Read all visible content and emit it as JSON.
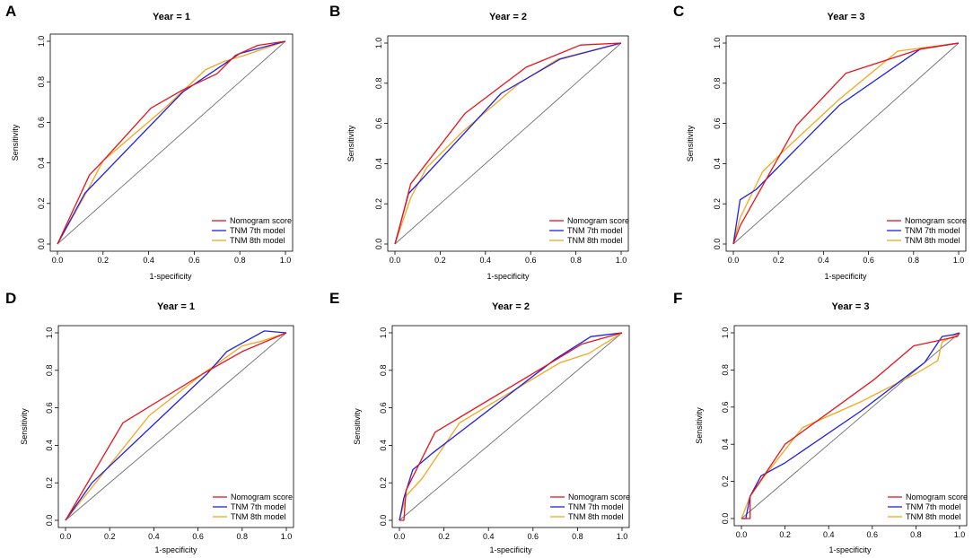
{
  "figure": {
    "colors": {
      "nomogram": "#e8141c",
      "tnm7": "#1f1fe6",
      "tnm8": "#f2a81d",
      "diagonal": "#707070",
      "axis": "#000000"
    }
  },
  "chart_data": [
    {
      "panel": "A",
      "type": "line",
      "title": "Year = 1",
      "xlabel": "1-specificity",
      "ylabel": "Sensitivity",
      "xlim": [
        0,
        1
      ],
      "ylim": [
        0,
        1
      ],
      "xticks": [
        "0.0",
        "0.2",
        "0.4",
        "0.6",
        "0.8",
        "1.0"
      ],
      "yticks": [
        "0.0",
        "0.2",
        "0.4",
        "0.6",
        "0.8",
        "1.0"
      ],
      "legend": [
        "Nomogram score",
        "TNM 7th model",
        "TNM 8th model"
      ],
      "series": [
        {
          "name": "Nomogram score",
          "x": [
            0,
            0.14,
            0.2,
            0.41,
            0.55,
            0.7,
            0.78,
            0.88,
            1
          ],
          "y": [
            0,
            0.34,
            0.41,
            0.67,
            0.76,
            0.84,
            0.93,
            0.98,
            1
          ]
        },
        {
          "name": "TNM 7th model",
          "x": [
            0,
            0.12,
            0.55,
            0.8,
            1
          ],
          "y": [
            0,
            0.25,
            0.75,
            0.94,
            1
          ]
        },
        {
          "name": "TNM 8th model",
          "x": [
            0,
            0.12,
            0.2,
            0.47,
            0.65,
            0.73,
            0.82,
            1
          ],
          "y": [
            0,
            0.24,
            0.41,
            0.67,
            0.86,
            0.9,
            0.93,
            1
          ]
        }
      ]
    },
    {
      "panel": "B",
      "type": "line",
      "title": "Year = 2",
      "xlabel": "1-specificity",
      "ylabel": "Sensitivity",
      "xlim": [
        0,
        1
      ],
      "ylim": [
        0,
        1
      ],
      "xticks": [
        "0.0",
        "0.2",
        "0.4",
        "0.6",
        "0.8",
        "1.0"
      ],
      "yticks": [
        "0.0",
        "0.2",
        "0.4",
        "0.6",
        "0.8",
        "1.0"
      ],
      "legend": [
        "Nomogram score",
        "TNM 7th model",
        "TNM 8th model"
      ],
      "series": [
        {
          "name": "Nomogram score",
          "x": [
            0,
            0.02,
            0.07,
            0.31,
            0.58,
            0.82,
            1
          ],
          "y": [
            0,
            0.08,
            0.3,
            0.65,
            0.88,
            0.99,
            1
          ]
        },
        {
          "name": "TNM 7th model",
          "x": [
            0,
            0.06,
            0.47,
            0.73,
            1
          ],
          "y": [
            0,
            0.25,
            0.75,
            0.92,
            1
          ]
        },
        {
          "name": "TNM 8th model",
          "x": [
            0,
            0.07,
            0.14,
            0.3,
            0.55,
            0.72,
            1
          ],
          "y": [
            0,
            0.23,
            0.38,
            0.56,
            0.8,
            0.92,
            1
          ]
        }
      ]
    },
    {
      "panel": "C",
      "type": "line",
      "title": "Year = 3",
      "xlabel": "1-specificity",
      "ylabel": "Sensitivity",
      "xlim": [
        0,
        1
      ],
      "ylim": [
        0,
        1
      ],
      "xticks": [
        "0.0",
        "0.2",
        "0.4",
        "0.6",
        "0.8",
        "1.0"
      ],
      "yticks": [
        "0.0",
        "0.2",
        "0.4",
        "0.6",
        "0.8",
        "1.0"
      ],
      "legend": [
        "Nomogram score",
        "TNM 7th model",
        "TNM 8th model"
      ],
      "series": [
        {
          "name": "Nomogram score",
          "x": [
            0,
            0.03,
            0.28,
            0.5,
            0.83,
            1
          ],
          "y": [
            0,
            0.09,
            0.59,
            0.85,
            0.97,
            1
          ]
        },
        {
          "name": "TNM 7th model",
          "x": [
            0,
            0.03,
            0.1,
            0.47,
            0.83,
            1
          ],
          "y": [
            0,
            0.22,
            0.27,
            0.69,
            0.97,
            1
          ]
        },
        {
          "name": "TNM 8th model",
          "x": [
            0,
            0.03,
            0.13,
            0.23,
            0.47,
            0.73,
            1
          ],
          "y": [
            0,
            0.13,
            0.36,
            0.47,
            0.72,
            0.96,
            1
          ]
        }
      ]
    },
    {
      "panel": "D",
      "type": "line",
      "title": "Year = 1",
      "xlabel": "1-specificity",
      "ylabel": "Sensitivity",
      "xlim": [
        0,
        1
      ],
      "ylim": [
        0,
        1
      ],
      "xticks": [
        "0.0",
        "0.2",
        "0.4",
        "0.6",
        "0.8",
        "1.0"
      ],
      "yticks": [
        "0.0",
        "0.2",
        "0.4",
        "0.6",
        "0.8",
        "1.0"
      ],
      "legend": [
        "Nomogram score",
        "TNM 7th model",
        "TNM 8th model"
      ],
      "series": [
        {
          "name": "Nomogram score",
          "x": [
            0,
            0.26,
            0.62,
            0.8,
            1
          ],
          "y": [
            0,
            0.52,
            0.78,
            0.9,
            1
          ]
        },
        {
          "name": "TNM 7th model",
          "x": [
            0,
            0.12,
            0.64,
            0.73,
            0.9,
            1
          ],
          "y": [
            0,
            0.2,
            0.78,
            0.9,
            1.01,
            1
          ]
        },
        {
          "name": "TNM 8th model",
          "x": [
            0,
            0.38,
            0.62,
            0.8,
            0.9,
            1
          ],
          "y": [
            0,
            0.56,
            0.78,
            0.93,
            0.96,
            1
          ]
        }
      ]
    },
    {
      "panel": "E",
      "type": "line",
      "title": "Year = 2",
      "xlabel": "1-specificity",
      "ylabel": "Sensitivity",
      "xlim": [
        0,
        1
      ],
      "ylim": [
        0,
        1
      ],
      "xticks": [
        "0.0",
        "0.2",
        "0.4",
        "0.6",
        "0.8",
        "1.0"
      ],
      "yticks": [
        "0.0",
        "0.2",
        "0.4",
        "0.6",
        "0.8",
        "1.0"
      ],
      "legend": [
        "Nomogram score",
        "TNM 7th model",
        "TNM 8th model"
      ],
      "series": [
        {
          "name": "Nomogram score",
          "x": [
            0,
            0.02,
            0.03,
            0.16,
            0.82,
            1
          ],
          "y": [
            0,
            0,
            0.16,
            0.47,
            0.94,
            1
          ]
        },
        {
          "name": "TNM 7th model",
          "x": [
            0,
            0.02,
            0.06,
            0.15,
            0.7,
            0.86,
            1
          ],
          "y": [
            0,
            0.12,
            0.27,
            0.36,
            0.86,
            0.98,
            1
          ]
        },
        {
          "name": "TNM 8th model",
          "x": [
            0,
            0.03,
            0.1,
            0.27,
            0.72,
            0.85,
            1
          ],
          "y": [
            0,
            0.13,
            0.22,
            0.52,
            0.84,
            0.89,
            1
          ]
        }
      ]
    },
    {
      "panel": "F",
      "type": "line",
      "title": "Year = 3",
      "xlabel": "1-specificity",
      "ylabel": "Sensitivity",
      "xlim": [
        0,
        1
      ],
      "ylim": [
        0,
        1
      ],
      "xticks": [
        "0.0",
        "0.2",
        "0.4",
        "0.6",
        "0.8",
        "1.0"
      ],
      "yticks": [
        "0.0",
        "0.2",
        "0.4",
        "0.6",
        "0.8",
        "1.0"
      ],
      "legend": [
        "Nomogram score",
        "TNM 7th model",
        "TNM 8th model"
      ],
      "series": [
        {
          "name": "Nomogram score",
          "x": [
            0,
            0.02,
            0.04,
            0.04,
            0.2,
            0.61,
            0.79,
            0.99,
            1
          ],
          "y": [
            0,
            0,
            0,
            0.12,
            0.4,
            0.75,
            0.93,
            0.98,
            1
          ]
        },
        {
          "name": "TNM 7th model",
          "x": [
            0,
            0.02,
            0.04,
            0.09,
            0.2,
            0.55,
            0.84,
            0.92,
            0.97,
            1
          ],
          "y": [
            0,
            0,
            0.12,
            0.23,
            0.3,
            0.58,
            0.84,
            0.98,
            0.99,
            1
          ]
        },
        {
          "name": "TNM 8th model",
          "x": [
            0,
            0.04,
            0.1,
            0.28,
            0.55,
            0.8,
            0.9,
            0.92,
            1
          ],
          "y": [
            0,
            0.12,
            0.22,
            0.49,
            0.63,
            0.78,
            0.85,
            0.95,
            1
          ]
        }
      ]
    }
  ]
}
